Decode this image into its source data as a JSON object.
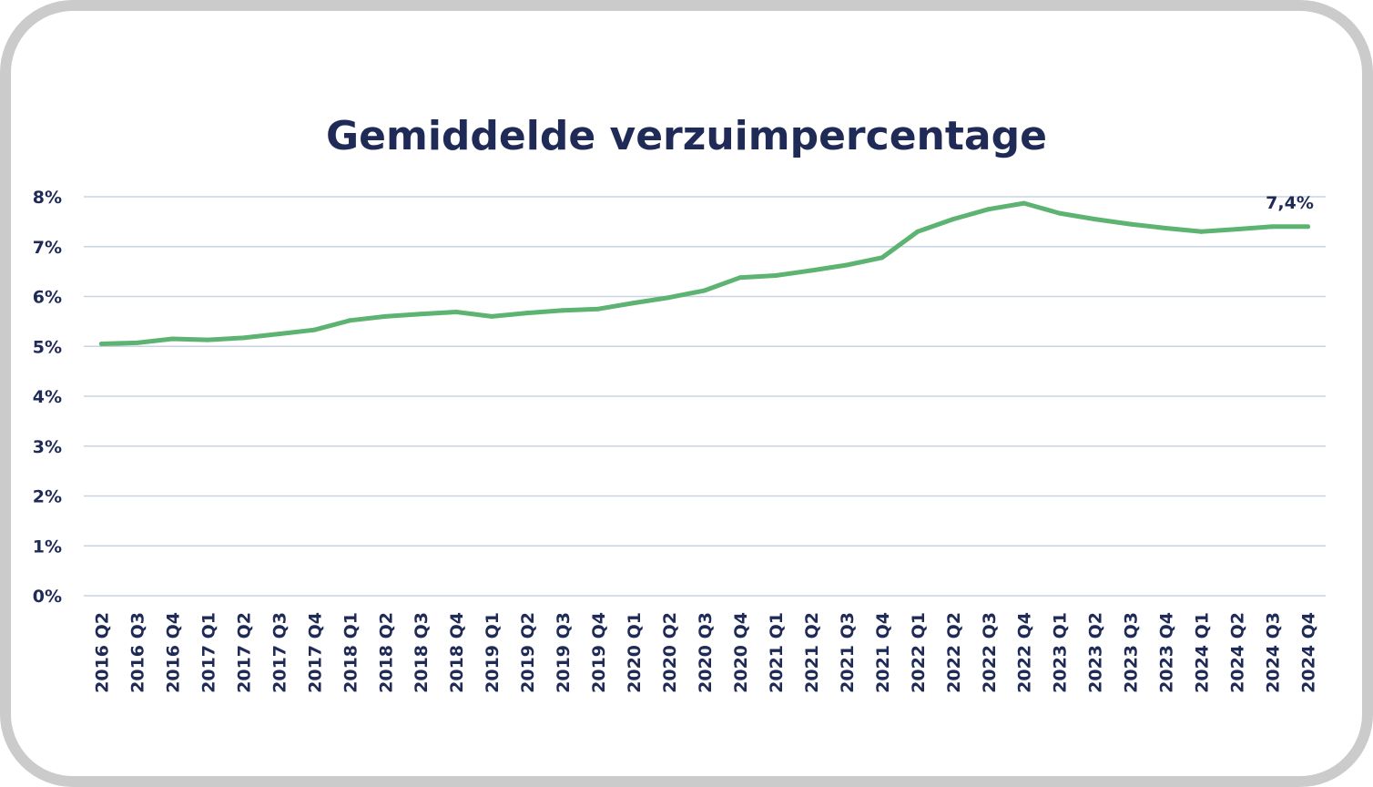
{
  "chart_data": {
    "type": "line",
    "title": "Gemiddelde verzuimpercentage",
    "xlabel": "",
    "ylabel": "",
    "ylim": [
      0,
      8
    ],
    "yticks": [
      "0%",
      "1%",
      "2%",
      "3%",
      "4%",
      "5%",
      "6%",
      "7%",
      "8%"
    ],
    "grid": true,
    "categories": [
      "2016 Q2",
      "2016 Q3",
      "2016 Q4",
      "2017 Q1",
      "2017 Q2",
      "2017 Q3",
      "2017 Q4",
      "2018 Q1",
      "2018 Q2",
      "2018 Q3",
      "2018 Q4",
      "2019 Q1",
      "2019 Q2",
      "2019 Q3",
      "2019 Q4",
      "2020 Q1",
      "2020 Q2",
      "2020 Q3",
      "2020 Q4",
      "2021 Q1",
      "2021 Q2",
      "2021 Q3",
      "2021 Q4",
      "2022 Q1",
      "2022 Q2",
      "2022 Q3",
      "2022 Q4",
      "2023 Q1",
      "2023 Q2",
      "2023 Q3",
      "2023 Q4",
      "2024 Q1",
      "2024 Q2",
      "2024 Q3",
      "2024 Q4"
    ],
    "series": [
      {
        "color": "#5db371",
        "values": [
          5.05,
          5.07,
          5.15,
          5.13,
          5.17,
          5.25,
          5.33,
          5.52,
          5.6,
          5.65,
          5.69,
          5.6,
          5.67,
          5.72,
          5.75,
          5.87,
          5.98,
          6.12,
          6.38,
          6.42,
          6.52,
          6.63,
          6.78,
          7.3,
          7.55,
          7.75,
          7.87,
          7.67,
          7.55,
          7.45,
          7.37,
          7.3,
          7.35,
          7.4,
          7.4
        ]
      }
    ],
    "annotations": [
      {
        "category": "2024 Q4",
        "text": "7,4%"
      }
    ]
  }
}
